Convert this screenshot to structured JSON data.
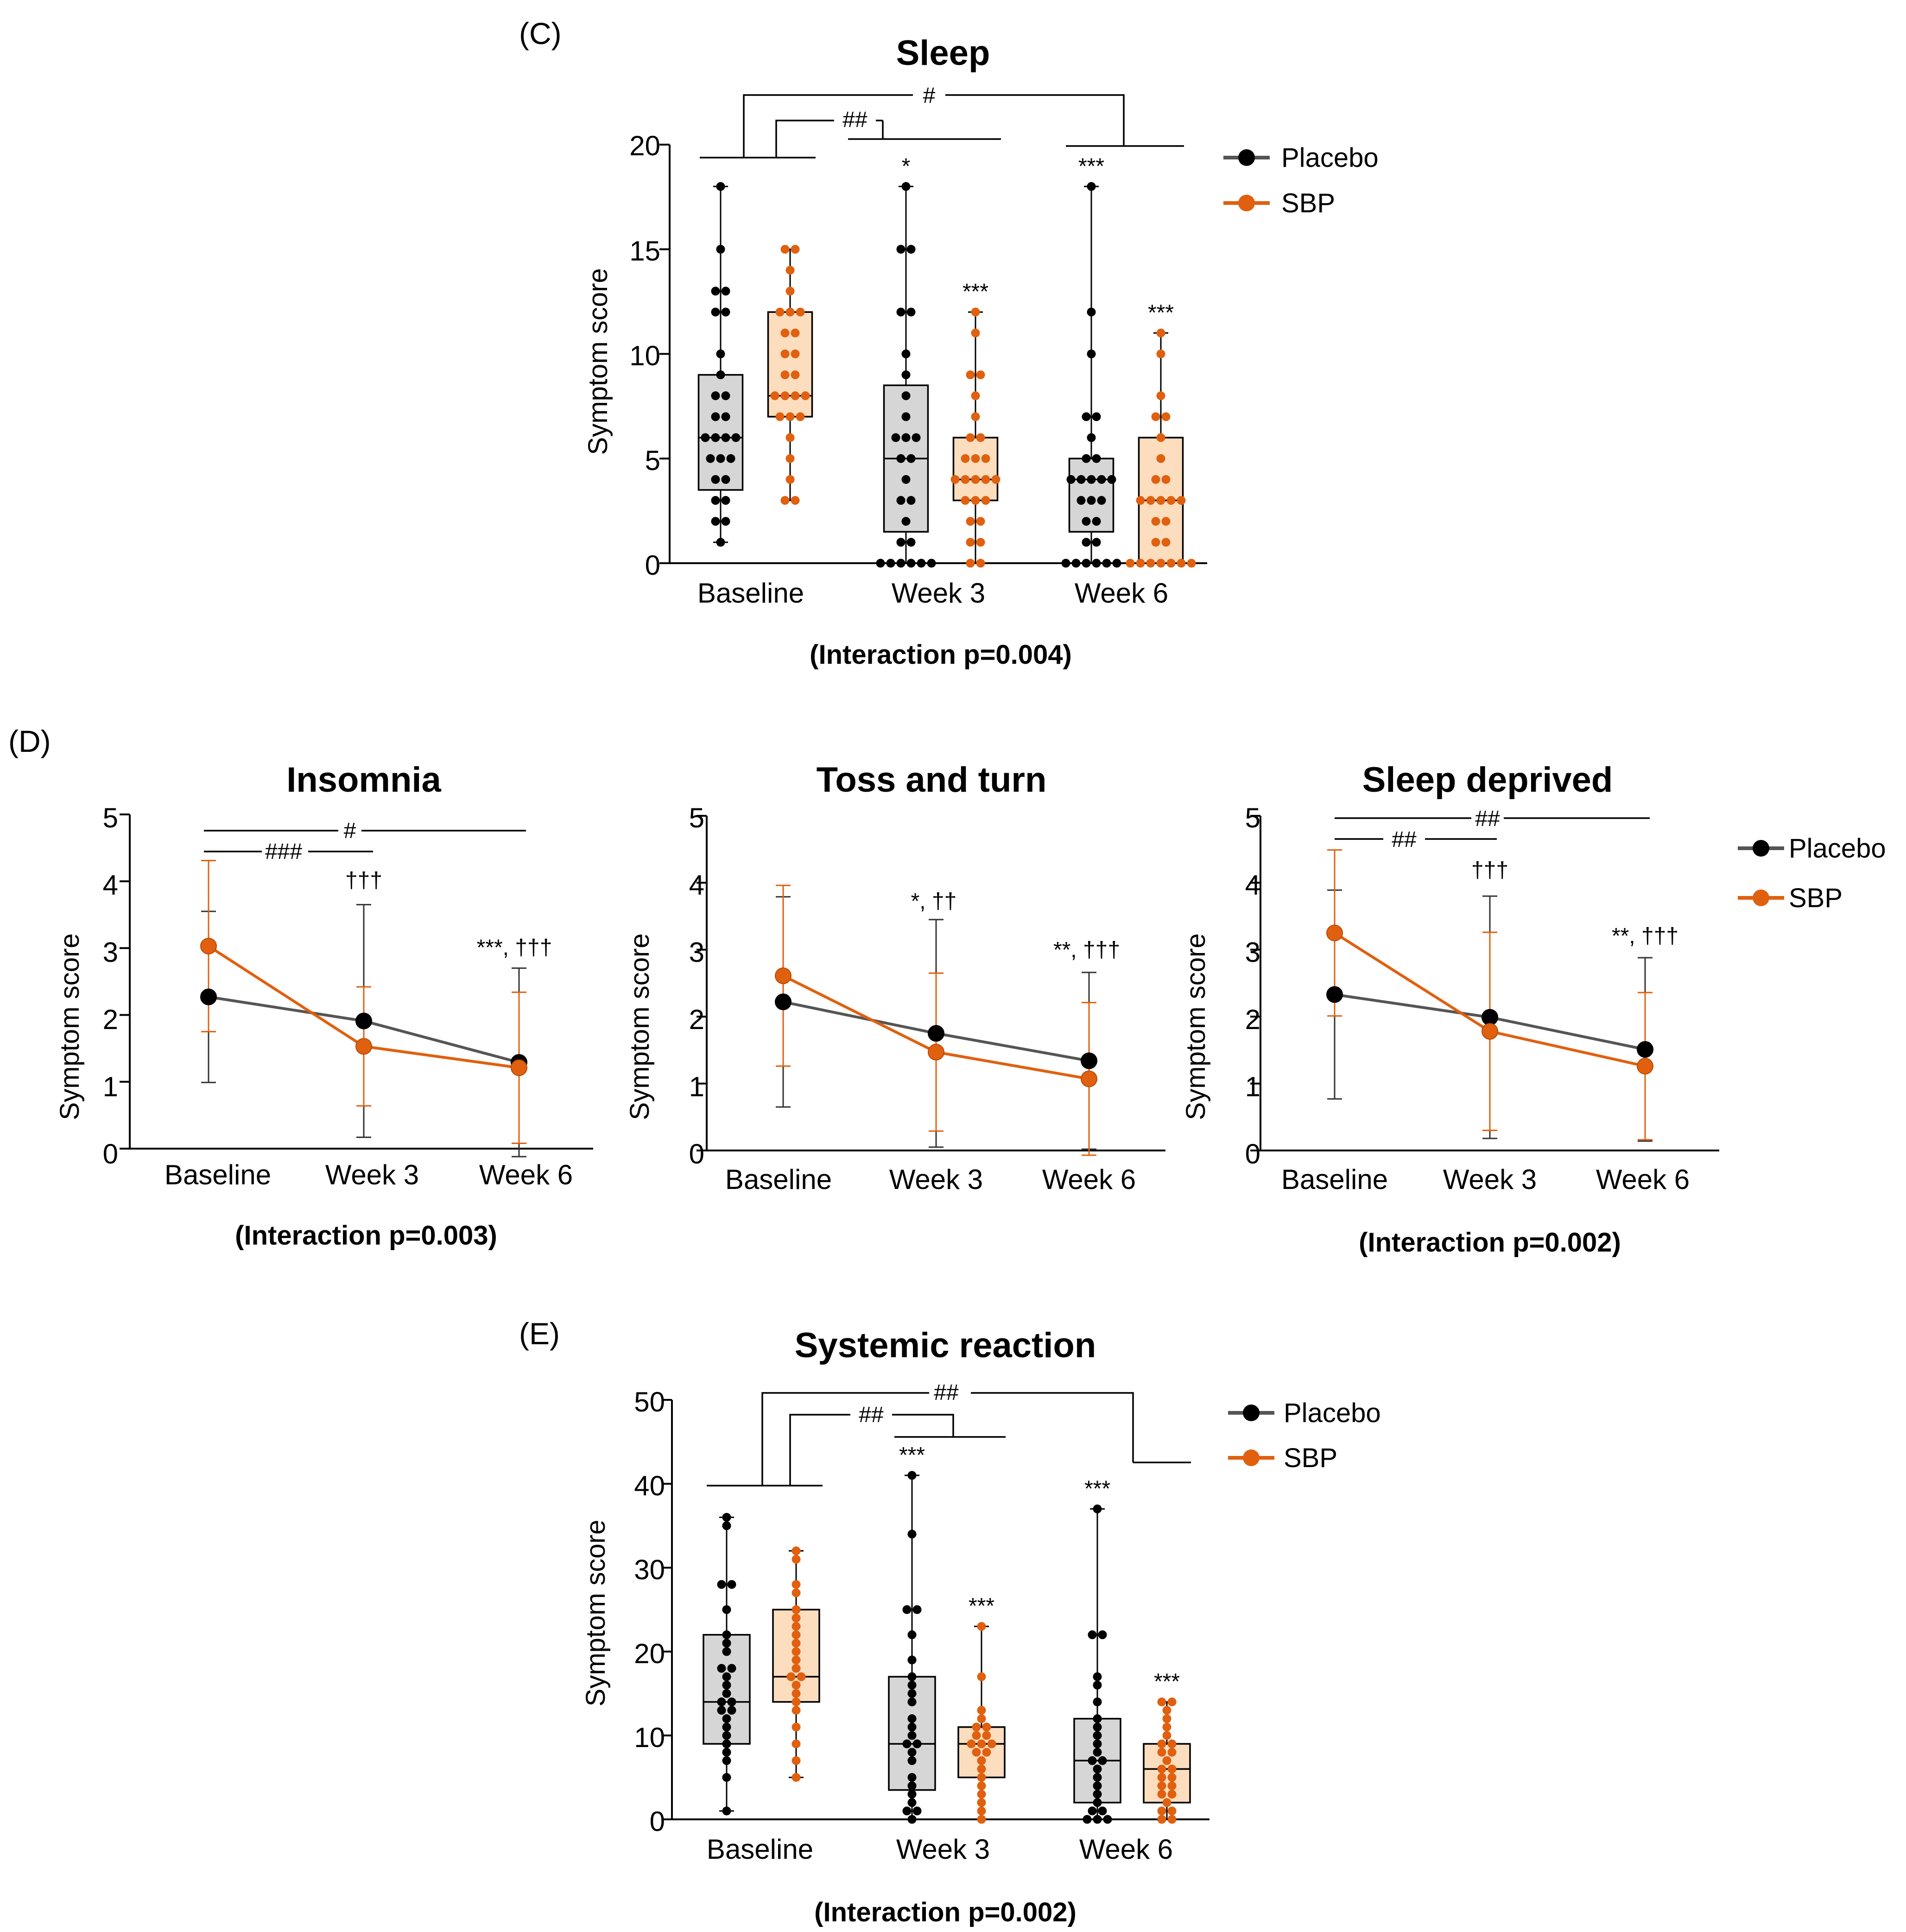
{
  "colors": {
    "placebo": "#000000",
    "sbp": "#E0600F",
    "placebo_line": "#555555",
    "placebo_box": "#D6D6D6",
    "sbp_box": "#FCDDBE"
  },
  "legend": {
    "placebo": "Placebo",
    "sbp": "SBP"
  },
  "chart_data": [
    {
      "id": "C",
      "panel_label": "(C)",
      "type": "box",
      "title": "Sleep",
      "ylabel": "Symptom score",
      "ylim": [
        0,
        20
      ],
      "yticks": [
        "0",
        "5",
        "10",
        "15",
        "20"
      ],
      "categories": [
        "Baseline",
        "Week 3",
        "Week 6"
      ],
      "interaction": "(Interaction p=0.004)",
      "series": [
        {
          "name": "Placebo",
          "boxes": [
            {
              "min": 1,
              "q1": 3.5,
              "median": 6,
              "q3": 9,
              "max": 18,
              "points": [
                1,
                2,
                2,
                3,
                3,
                4,
                4,
                5,
                5,
                5,
                6,
                6,
                6,
                6,
                7,
                7,
                8,
                8,
                9,
                10,
                12,
                12,
                13,
                13,
                15,
                18
              ],
              "annotation": ""
            },
            {
              "min": 0,
              "q1": 1.5,
              "median": 5,
              "q3": 8.5,
              "max": 18,
              "points": [
                0,
                0,
                0,
                0,
                0,
                0,
                1,
                1,
                2,
                3,
                3,
                4,
                5,
                5,
                6,
                6,
                6,
                7,
                8,
                9,
                10,
                12,
                12,
                15,
                15,
                18
              ],
              "annotation": "*"
            },
            {
              "min": 0,
              "q1": 1.5,
              "median": 4,
              "q3": 5,
              "max": 18,
              "points": [
                0,
                0,
                0,
                0,
                0,
                0,
                1,
                1,
                2,
                2,
                3,
                3,
                3,
                4,
                4,
                4,
                4,
                4,
                5,
                5,
                6,
                7,
                7,
                10,
                12,
                18
              ],
              "annotation": "***"
            }
          ]
        },
        {
          "name": "SBP",
          "boxes": [
            {
              "min": 3,
              "q1": 7,
              "median": 8,
              "q3": 12,
              "max": 15,
              "points": [
                3,
                3,
                4,
                5,
                6,
                7,
                7,
                7,
                8,
                8,
                8,
                8,
                9,
                9,
                10,
                10,
                11,
                11,
                12,
                12,
                12,
                13,
                14,
                15,
                15
              ],
              "annotation": ""
            },
            {
              "min": 0,
              "q1": 3,
              "median": 4,
              "q3": 6,
              "max": 12,
              "points": [
                0,
                0,
                1,
                1,
                2,
                2,
                3,
                3,
                3,
                4,
                4,
                4,
                4,
                4,
                5,
                5,
                5,
                6,
                6,
                7,
                8,
                9,
                9,
                11,
                12
              ],
              "annotation": "***"
            },
            {
              "min": 0,
              "q1": 0,
              "median": 3,
              "q3": 6,
              "max": 11,
              "points": [
                0,
                0,
                0,
                0,
                0,
                0,
                0,
                1,
                1,
                2,
                2,
                3,
                3,
                3,
                3,
                3,
                4,
                4,
                5,
                6,
                7,
                7,
                8,
                10,
                11
              ],
              "annotation": "***"
            }
          ]
        }
      ],
      "sig": [
        "#",
        "##"
      ]
    },
    {
      "id": "D1",
      "panel_label": "(D)",
      "type": "line",
      "title": "Insomnia",
      "ylabel": "Symptom score",
      "ylim": [
        0,
        5
      ],
      "yticks": [
        "0",
        "1",
        "2",
        "3",
        "4",
        "5"
      ],
      "categories": [
        "Baseline",
        "Week 3",
        "Week 6"
      ],
      "interaction": "(Interaction p=0.003)",
      "series": [
        {
          "name": "Placebo",
          "values": [
            2.27,
            1.91,
            1.29
          ],
          "sd": [
            1.28,
            1.74,
            1.41
          ]
        },
        {
          "name": "SBP",
          "values": [
            3.03,
            1.53,
            1.21
          ],
          "sd": [
            1.28,
            0.89,
            1.13
          ]
        }
      ],
      "annotations": [
        "",
        "†††",
        "***, †††"
      ],
      "sig": [
        "#",
        "###"
      ]
    },
    {
      "id": "D2",
      "panel_label": "",
      "type": "line",
      "title": "Toss and turn",
      "ylabel": "Symptom score",
      "ylim": [
        0,
        5
      ],
      "yticks": [
        "0",
        "1",
        "2",
        "3",
        "4",
        "5"
      ],
      "categories": [
        "Baseline",
        "Week 3",
        "Week 6"
      ],
      "interaction": "",
      "series": [
        {
          "name": "Placebo",
          "values": [
            2.22,
            1.75,
            1.34
          ],
          "sd": [
            1.57,
            1.7,
            1.32
          ]
        },
        {
          "name": "SBP",
          "values": [
            2.61,
            1.47,
            1.07
          ],
          "sd": [
            1.35,
            1.18,
            1.14
          ]
        }
      ],
      "annotations": [
        "",
        "*, ††",
        "**, †††"
      ],
      "sig": []
    },
    {
      "id": "D3",
      "panel_label": "",
      "type": "line",
      "title": "Sleep deprived",
      "ylabel": "Symptom score",
      "ylim": [
        0,
        5
      ],
      "yticks": [
        "0",
        "1",
        "2",
        "3",
        "4",
        "5"
      ],
      "categories": [
        "Baseline",
        "Week 3",
        "Week 6"
      ],
      "interaction": "(Interaction p=0.002)",
      "series": [
        {
          "name": "Placebo",
          "values": [
            2.33,
            1.99,
            1.51
          ],
          "sd": [
            1.56,
            1.81,
            1.37
          ]
        },
        {
          "name": "SBP",
          "values": [
            3.25,
            1.78,
            1.26
          ],
          "sd": [
            1.24,
            1.48,
            1.1
          ]
        }
      ],
      "annotations": [
        "",
        "†††",
        "**, †††"
      ],
      "sig": [
        "##",
        "##"
      ]
    },
    {
      "id": "E",
      "panel_label": "(E)",
      "type": "box",
      "title": "Systemic reaction",
      "ylabel": "Symptom score",
      "ylim": [
        0,
        50
      ],
      "yticks": [
        "0",
        "10",
        "20",
        "30",
        "40",
        "50"
      ],
      "categories": [
        "Baseline",
        "Week 3",
        "Week 6"
      ],
      "interaction": "(Interaction p=0.002)",
      "series": [
        {
          "name": "Placebo",
          "boxes": [
            {
              "min": 1,
              "q1": 9,
              "median": 14,
              "q3": 22,
              "max": 36,
              "points": [
                1,
                5,
                7,
                8,
                9,
                10,
                11,
                12,
                13,
                13,
                14,
                14,
                15,
                16,
                17,
                18,
                18,
                20,
                21,
                22,
                25,
                28,
                28,
                35,
                36
              ],
              "annotation": ""
            },
            {
              "min": 0,
              "q1": 3.5,
              "median": 9,
              "q3": 17,
              "max": 41,
              "points": [
                0,
                1,
                1,
                2,
                3,
                4,
                5,
                7,
                8,
                9,
                9,
                10,
                11,
                12,
                14,
                15,
                16,
                17,
                19,
                22,
                25,
                25,
                34,
                41
              ],
              "annotation": "***"
            },
            {
              "min": 0,
              "q1": 2,
              "median": 7,
              "q3": 12,
              "max": 37,
              "points": [
                0,
                0,
                0,
                1,
                1,
                2,
                3,
                4,
                5,
                6,
                7,
                7,
                8,
                9,
                10,
                11,
                12,
                14,
                16,
                17,
                22,
                22,
                37
              ],
              "annotation": "***"
            }
          ]
        },
        {
          "name": "SBP",
          "boxes": [
            {
              "min": 5,
              "q1": 14,
              "median": 17,
              "q3": 25,
              "max": 32,
              "points": [
                5,
                7,
                9,
                11,
                13,
                14,
                15,
                16,
                17,
                17,
                18,
                19,
                20,
                21,
                22,
                23,
                24,
                25,
                27,
                28,
                31,
                32
              ],
              "annotation": ""
            },
            {
              "min": 0,
              "q1": 5,
              "median": 9,
              "q3": 11,
              "max": 23,
              "points": [
                0,
                1,
                2,
                3,
                4,
                5,
                6,
                7,
                8,
                8,
                9,
                9,
                9,
                10,
                10,
                11,
                11,
                12,
                13,
                17,
                23
              ],
              "annotation": "***"
            },
            {
              "min": 0,
              "q1": 2,
              "median": 6,
              "q3": 9,
              "max": 14,
              "points": [
                0,
                0,
                1,
                1,
                2,
                3,
                3,
                4,
                4,
                5,
                5,
                6,
                6,
                7,
                8,
                8,
                9,
                9,
                10,
                11,
                12,
                13,
                14,
                14
              ],
              "annotation": "***"
            }
          ]
        }
      ],
      "sig": [
        "##",
        "##"
      ]
    }
  ]
}
